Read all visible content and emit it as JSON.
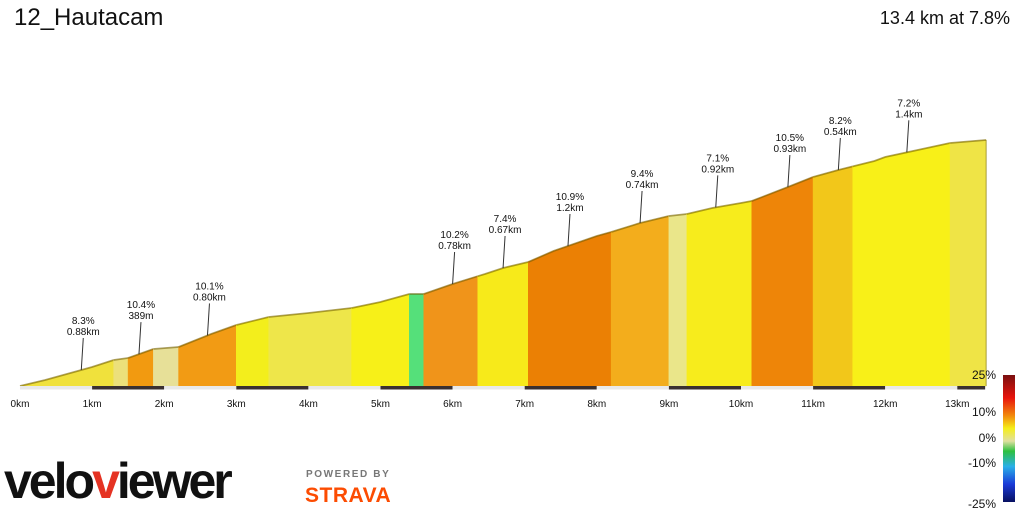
{
  "header": {
    "title": "12_Hautacam",
    "summary": "13.4 km at 7.8%"
  },
  "branding": {
    "logo": "veloviewer",
    "powered_by": "POWERED BY",
    "partner": "STRAVA"
  },
  "colors": {
    "veloviewer_v": "#e53323",
    "veloviewer_rest": "#111111",
    "strava": "#fc4c02"
  },
  "chart_data": {
    "type": "area",
    "x_unit": "km",
    "xlim": [
      0,
      13.4
    ],
    "x_tick_labels": [
      "0km",
      "1km",
      "2km",
      "3km",
      "4km",
      "5km",
      "6km",
      "7km",
      "8km",
      "9km",
      "10km",
      "11km",
      "12km",
      "13km"
    ],
    "x_ticks": [
      0,
      1,
      2,
      3,
      4,
      5,
      6,
      7,
      8,
      9,
      10,
      11,
      12,
      13
    ],
    "gradient_scale": {
      "labels": [
        "25%",
        "10%",
        "0%",
        "-10%",
        "-25%"
      ],
      "values": [
        25,
        10,
        0,
        -10,
        -25
      ]
    },
    "profile": [
      {
        "x": 0.0,
        "y": 0
      },
      {
        "x": 0.35,
        "y": 6
      },
      {
        "x": 1.0,
        "y": 19
      },
      {
        "x": 1.3,
        "y": 26
      },
      {
        "x": 1.5,
        "y": 28
      },
      {
        "x": 1.85,
        "y": 37
      },
      {
        "x": 2.2,
        "y": 39
      },
      {
        "x": 2.65,
        "y": 52
      },
      {
        "x": 3.0,
        "y": 61
      },
      {
        "x": 3.45,
        "y": 69
      },
      {
        "x": 4.0,
        "y": 73
      },
      {
        "x": 4.6,
        "y": 78
      },
      {
        "x": 5.0,
        "y": 84
      },
      {
        "x": 5.4,
        "y": 92
      },
      {
        "x": 5.6,
        "y": 92
      },
      {
        "x": 6.0,
        "y": 102
      },
      {
        "x": 6.45,
        "y": 112
      },
      {
        "x": 6.7,
        "y": 118
      },
      {
        "x": 7.05,
        "y": 124
      },
      {
        "x": 7.4,
        "y": 135
      },
      {
        "x": 8.0,
        "y": 150
      },
      {
        "x": 8.2,
        "y": 154
      },
      {
        "x": 8.6,
        "y": 163
      },
      {
        "x": 9.0,
        "y": 170
      },
      {
        "x": 9.25,
        "y": 172
      },
      {
        "x": 9.6,
        "y": 178
      },
      {
        "x": 10.0,
        "y": 183
      },
      {
        "x": 10.15,
        "y": 185
      },
      {
        "x": 10.65,
        "y": 199
      },
      {
        "x": 11.0,
        "y": 209
      },
      {
        "x": 11.35,
        "y": 216
      },
      {
        "x": 11.85,
        "y": 225
      },
      {
        "x": 12.0,
        "y": 229
      },
      {
        "x": 12.9,
        "y": 243
      },
      {
        "x": 13.4,
        "y": 246
      }
    ],
    "segments": [
      {
        "from": 0.0,
        "to": 1.3,
        "color": "#f0e13c"
      },
      {
        "from": 1.3,
        "to": 1.5,
        "color": "#ece07a"
      },
      {
        "from": 1.5,
        "to": 1.85,
        "color": "#f29a10"
      },
      {
        "from": 1.85,
        "to": 2.2,
        "color": "#e7e098"
      },
      {
        "from": 2.2,
        "to": 3.0,
        "color": "#f29b14"
      },
      {
        "from": 3.0,
        "to": 3.45,
        "color": "#f3ee1c"
      },
      {
        "from": 3.45,
        "to": 4.6,
        "color": "#eee64a"
      },
      {
        "from": 4.6,
        "to": 5.4,
        "color": "#f7f018"
      },
      {
        "from": 5.4,
        "to": 5.6,
        "color": "#55e07a"
      },
      {
        "from": 5.6,
        "to": 6.35,
        "color": "#f0941a"
      },
      {
        "from": 6.35,
        "to": 7.05,
        "color": "#f7ea1a"
      },
      {
        "from": 7.05,
        "to": 8.2,
        "color": "#eb8004"
      },
      {
        "from": 8.2,
        "to": 9.0,
        "color": "#f3ad1c"
      },
      {
        "from": 9.0,
        "to": 9.25,
        "color": "#eae68a"
      },
      {
        "from": 9.25,
        "to": 10.15,
        "color": "#f7ec1c"
      },
      {
        "from": 10.15,
        "to": 11.0,
        "color": "#ee8508"
      },
      {
        "from": 11.0,
        "to": 11.55,
        "color": "#f2c71a"
      },
      {
        "from": 11.55,
        "to": 12.9,
        "color": "#f8f018"
      },
      {
        "from": 12.9,
        "to": 13.4,
        "color": "#efe446"
      }
    ],
    "annotations": [
      {
        "x": 0.85,
        "grade": "8.3%",
        "length": "0.88km"
      },
      {
        "x": 1.65,
        "grade": "10.4%",
        "length": "389m"
      },
      {
        "x": 2.6,
        "grade": "10.1%",
        "length": "0.80km"
      },
      {
        "x": 6.0,
        "grade": "10.2%",
        "length": "0.78km"
      },
      {
        "x": 6.7,
        "grade": "7.4%",
        "length": "0.67km"
      },
      {
        "x": 7.6,
        "grade": "10.9%",
        "length": "1.2km"
      },
      {
        "x": 8.6,
        "grade": "9.4%",
        "length": "0.74km"
      },
      {
        "x": 9.65,
        "grade": "7.1%",
        "length": "0.92km"
      },
      {
        "x": 10.65,
        "grade": "10.5%",
        "length": "0.93km"
      },
      {
        "x": 11.35,
        "grade": "8.2%",
        "length": "0.54km"
      },
      {
        "x": 12.3,
        "grade": "7.2%",
        "length": "1.4km"
      }
    ]
  }
}
